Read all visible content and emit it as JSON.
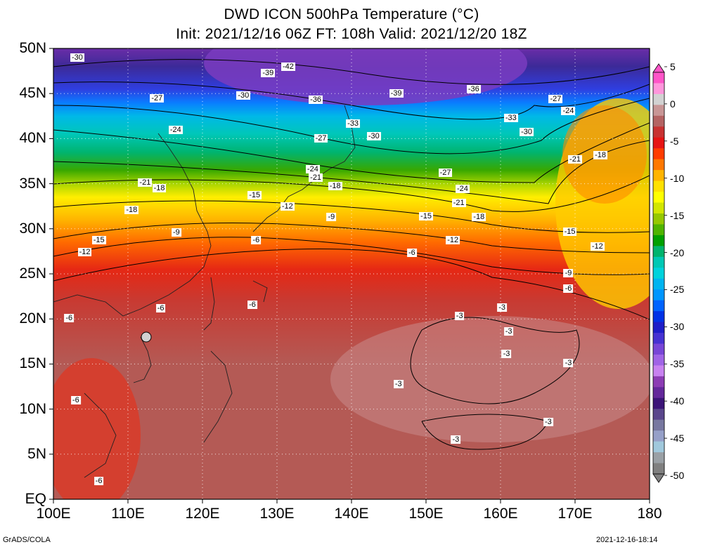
{
  "title": {
    "line1": "DWD ICON 500hPa Temperature (°C)",
    "line2": "Init: 2021/12/16 06Z  FT: 108h  Valid: 2021/12/20 18Z"
  },
  "axes": {
    "lat_labels": [
      "50N",
      "45N",
      "40N",
      "35N",
      "30N",
      "25N",
      "20N",
      "15N",
      "10N",
      "5N",
      "EQ"
    ],
    "lon_labels": [
      "100E",
      "110E",
      "120E",
      "130E",
      "140E",
      "150E",
      "160E",
      "170E",
      "180"
    ],
    "lat_range": [
      0,
      50
    ],
    "lon_range": [
      100,
      180
    ],
    "grid": "dotted"
  },
  "colorbar": {
    "labels": [
      "5",
      "0",
      "-5",
      "-10",
      "-15",
      "-20",
      "-25",
      "-30",
      "-35",
      "-40",
      "-45",
      "-50"
    ],
    "colors": [
      "#ff55c8",
      "#ff96dc",
      "#d2d2d2",
      "#c89696",
      "#b46464",
      "#c83232",
      "#e61414",
      "#ff3c00",
      "#ff7800",
      "#ffb400",
      "#ffe100",
      "#ffff00",
      "#d2e600",
      "#96c800",
      "#50b400",
      "#00a000",
      "#00b46e",
      "#00c8b4",
      "#00d2dc",
      "#00b4f0",
      "#0096ff",
      "#0064ff",
      "#0032e6",
      "#1e1ec8",
      "#4632d2",
      "#7846d7",
      "#a064e6",
      "#c882f0",
      "#8c3cb4",
      "#64289b",
      "#3c1478",
      "#5a468c",
      "#7878a0",
      "#96a0c8",
      "#a0c8dc",
      "#9aa0a5",
      "#808080"
    ]
  },
  "contour_labels": [
    {
      "text": "-30",
      "lon": 103.2,
      "lat": 49.0
    },
    {
      "text": "-42",
      "lon": 131.5,
      "lat": 48.0
    },
    {
      "text": "-39",
      "lon": 128.8,
      "lat": 47.3
    },
    {
      "text": "-27",
      "lon": 113.9,
      "lat": 44.5
    },
    {
      "text": "-30",
      "lon": 125.5,
      "lat": 44.8
    },
    {
      "text": "-36",
      "lon": 135.2,
      "lat": 44.3
    },
    {
      "text": "-39",
      "lon": 146.0,
      "lat": 45.0
    },
    {
      "text": "-36",
      "lon": 156.4,
      "lat": 45.5
    },
    {
      "text": "-27",
      "lon": 167.4,
      "lat": 44.4
    },
    {
      "text": "-24",
      "lon": 169.1,
      "lat": 43.1
    },
    {
      "text": "-33",
      "lon": 140.2,
      "lat": 41.7
    },
    {
      "text": "-33",
      "lon": 161.4,
      "lat": 42.3
    },
    {
      "text": "-24",
      "lon": 116.4,
      "lat": 41.0
    },
    {
      "text": "-30",
      "lon": 143.0,
      "lat": 40.3
    },
    {
      "text": "-30",
      "lon": 163.5,
      "lat": 40.7
    },
    {
      "text": "-27",
      "lon": 135.9,
      "lat": 40.0
    },
    {
      "text": "-18",
      "lon": 173.4,
      "lat": 38.2
    },
    {
      "text": "-21",
      "lon": 170.0,
      "lat": 37.7
    },
    {
      "text": "-24",
      "lon": 134.8,
      "lat": 36.6
    },
    {
      "text": "-21",
      "lon": 135.2,
      "lat": 35.7
    },
    {
      "text": "-27",
      "lon": 152.6,
      "lat": 36.2
    },
    {
      "text": "-21",
      "lon": 112.3,
      "lat": 35.1
    },
    {
      "text": "-18",
      "lon": 114.2,
      "lat": 34.5
    },
    {
      "text": "-18",
      "lon": 137.8,
      "lat": 34.7
    },
    {
      "text": "-24",
      "lon": 154.9,
      "lat": 34.4
    },
    {
      "text": "-15",
      "lon": 127.0,
      "lat": 33.7
    },
    {
      "text": "-21",
      "lon": 154.4,
      "lat": 32.9
    },
    {
      "text": "-12",
      "lon": 131.4,
      "lat": 32.5
    },
    {
      "text": "-18",
      "lon": 110.5,
      "lat": 32.1
    },
    {
      "text": "-9",
      "lon": 137.3,
      "lat": 31.3
    },
    {
      "text": "-15",
      "lon": 150.0,
      "lat": 31.4
    },
    {
      "text": "-18",
      "lon": 157.1,
      "lat": 31.3
    },
    {
      "text": "-9",
      "lon": 116.5,
      "lat": 29.6
    },
    {
      "text": "-15",
      "lon": 169.3,
      "lat": 29.7
    },
    {
      "text": "-15",
      "lon": 106.1,
      "lat": 28.7
    },
    {
      "text": "-6",
      "lon": 127.2,
      "lat": 28.7
    },
    {
      "text": "-12",
      "lon": 153.6,
      "lat": 28.7
    },
    {
      "text": "-12",
      "lon": 173.0,
      "lat": 28.0
    },
    {
      "text": "-12",
      "lon": 104.2,
      "lat": 27.4
    },
    {
      "text": "-6",
      "lon": 148.1,
      "lat": 27.3
    },
    {
      "text": "-9",
      "lon": 169.1,
      "lat": 25.1
    },
    {
      "text": "-6",
      "lon": 169.1,
      "lat": 23.4
    },
    {
      "text": "-6",
      "lon": 126.7,
      "lat": 21.6
    },
    {
      "text": "-6",
      "lon": 114.4,
      "lat": 21.2
    },
    {
      "text": "-3",
      "lon": 160.2,
      "lat": 21.3
    },
    {
      "text": "-6",
      "lon": 102.1,
      "lat": 20.1
    },
    {
      "text": "-3",
      "lon": 154.5,
      "lat": 20.3
    },
    {
      "text": "-3",
      "lon": 161.1,
      "lat": 18.6
    },
    {
      "text": "-3",
      "lon": 160.8,
      "lat": 16.1
    },
    {
      "text": "-3",
      "lon": 169.1,
      "lat": 15.1
    },
    {
      "text": "-3",
      "lon": 146.3,
      "lat": 12.8
    },
    {
      "text": "-6",
      "lon": 103.0,
      "lat": 11.0
    },
    {
      "text": "-3",
      "lon": 166.4,
      "lat": 8.6
    },
    {
      "text": "-3",
      "lon": 154.0,
      "lat": 6.6
    },
    {
      "text": "-6",
      "lon": 106.1,
      "lat": 2.0
    }
  ],
  "footer": {
    "left": "GrADS/COLA",
    "right": "2021-12-16-18:14"
  }
}
